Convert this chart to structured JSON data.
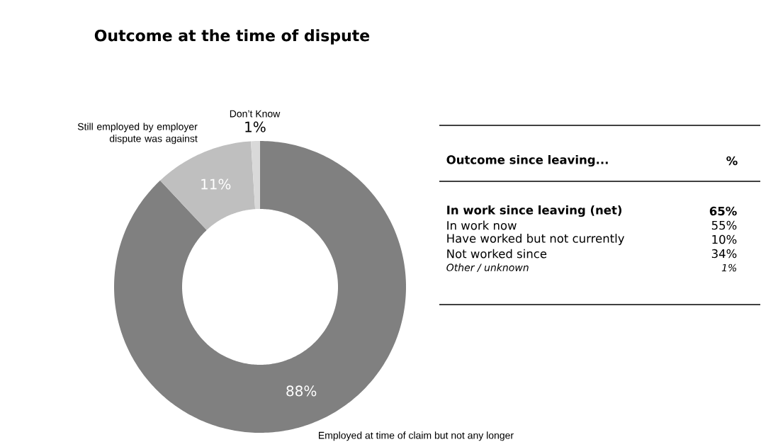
{
  "chart_data": [
    {
      "type": "donut",
      "title": "Outcome at the time of dispute",
      "categories": [
        "Employed at time of claim but not any longer",
        "Still employed by employer dispute was against",
        "Don’t Know"
      ],
      "values": [
        88,
        11,
        1
      ],
      "colors": [
        "#808080",
        "#bfbfbf",
        "#d9d9d9"
      ],
      "value_labels": [
        "88%",
        "11%",
        "1%"
      ]
    },
    {
      "type": "other",
      "title": "Outcome since leaving...",
      "ylabel": "%",
      "categories": [
        "In work since leaving (net)",
        "In work now",
        "Have worked but not currently",
        "Not worked since",
        "Other / unknown"
      ],
      "values": [
        65,
        55,
        10,
        34,
        1
      ],
      "value_labels": [
        "65%",
        "55%",
        "10%",
        "34%",
        "1%"
      ]
    }
  ]
}
